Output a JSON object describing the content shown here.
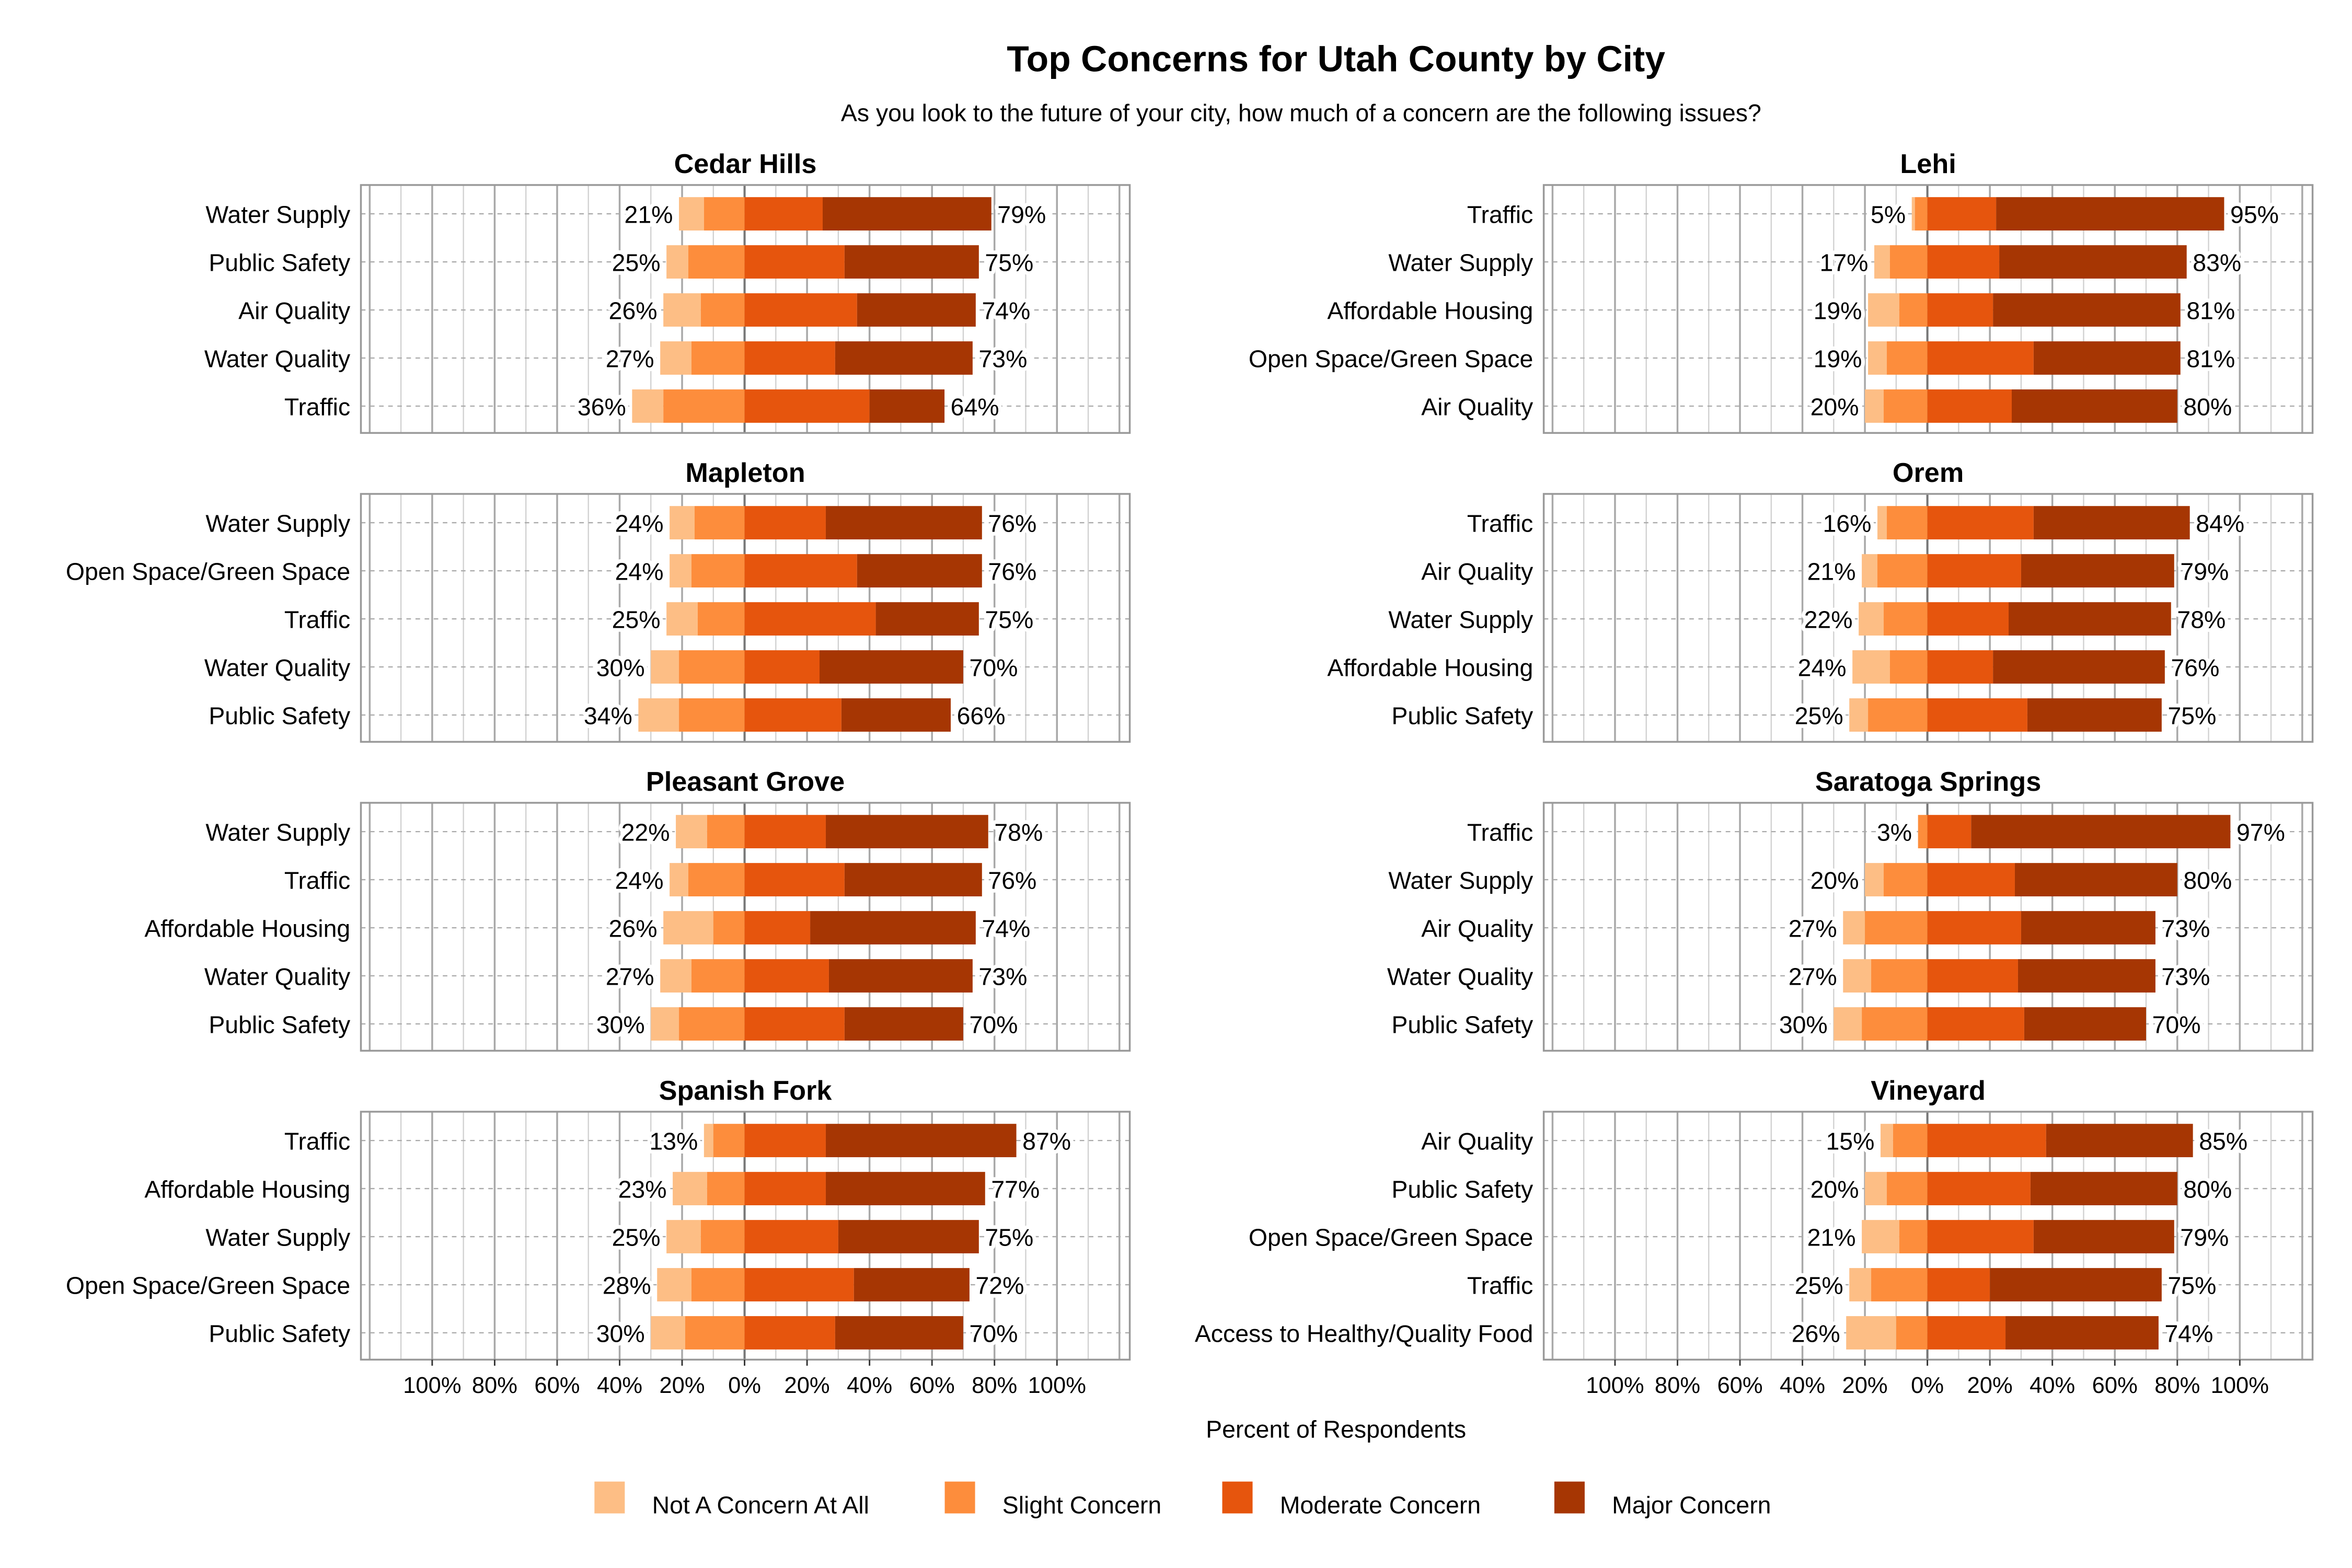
{
  "chart_data": {
    "type": "bar",
    "orientation": "horizontal diverging stacked",
    "title": "Top Concerns for Utah County by City",
    "subtitle": "As you look to the future of your city, how much of a concern are the following issues?",
    "xlabel": "Percent of Respondents",
    "xlim": [
      -100,
      100
    ],
    "x_tick_labels": [
      "100%",
      "80%",
      "60%",
      "40%",
      "20%",
      "0%",
      "20%",
      "40%",
      "60%",
      "80%",
      "100%"
    ],
    "grid": true,
    "legend_position": "bottom",
    "legend": [
      {
        "name": "Not A Concern At All",
        "color": "#FDBE85"
      },
      {
        "name": "Slight Concern",
        "color": "#FD8D3C"
      },
      {
        "name": "Moderate Concern",
        "color": "#E6550D"
      },
      {
        "name": "Major Concern",
        "color": "#A63603"
      }
    ],
    "panels": [
      {
        "title": "Cedar Hills",
        "categories": [
          "Water Supply",
          "Public Safety",
          "Air Quality",
          "Water Quality",
          "Traffic"
        ],
        "series": [
          [
            8,
            7,
            12,
            10,
            10
          ],
          [
            13,
            18,
            14,
            17,
            26
          ],
          [
            25,
            32,
            36,
            29,
            40
          ],
          [
            54,
            43,
            38,
            44,
            24
          ]
        ],
        "left_labels": [
          "21%",
          "25%",
          "26%",
          "27%",
          "36%"
        ],
        "right_labels": [
          "79%",
          "75%",
          "74%",
          "73%",
          "64%"
        ]
      },
      {
        "title": "Lehi",
        "categories": [
          "Traffic",
          "Water Supply",
          "Affordable Housing",
          "Open Space/Green Space",
          "Air Quality"
        ],
        "series": [
          [
            1,
            5,
            10,
            6,
            6
          ],
          [
            4,
            12,
            9,
            13,
            14
          ],
          [
            22,
            23,
            21,
            34,
            27
          ],
          [
            73,
            60,
            60,
            47,
            53
          ]
        ],
        "left_labels": [
          "5%",
          "17%",
          "19%",
          "19%",
          "20%"
        ],
        "right_labels": [
          "95%",
          "83%",
          "81%",
          "81%",
          "80%"
        ]
      },
      {
        "title": "Mapleton",
        "categories": [
          "Water Supply",
          "Open Space/Green Space",
          "Traffic",
          "Water Quality",
          "Public Safety"
        ],
        "series": [
          [
            8,
            7,
            10,
            9,
            13
          ],
          [
            16,
            17,
            15,
            21,
            21
          ],
          [
            26,
            36,
            42,
            24,
            31
          ],
          [
            50,
            40,
            33,
            46,
            35
          ]
        ],
        "left_labels": [
          "24%",
          "24%",
          "25%",
          "30%",
          "34%"
        ],
        "right_labels": [
          "76%",
          "76%",
          "75%",
          "70%",
          "66%"
        ]
      },
      {
        "title": "Orem",
        "categories": [
          "Traffic",
          "Air Quality",
          "Water Supply",
          "Affordable Housing",
          "Public Safety"
        ],
        "series": [
          [
            3,
            5,
            8,
            12,
            6
          ],
          [
            13,
            16,
            14,
            12,
            19
          ],
          [
            34,
            30,
            26,
            21,
            32
          ],
          [
            50,
            49,
            52,
            55,
            43
          ]
        ],
        "left_labels": [
          "16%",
          "21%",
          "22%",
          "24%",
          "25%"
        ],
        "right_labels": [
          "84%",
          "79%",
          "78%",
          "76%",
          "75%"
        ]
      },
      {
        "title": "Pleasant Grove",
        "categories": [
          "Water Supply",
          "Traffic",
          "Affordable Housing",
          "Water Quality",
          "Public Safety"
        ],
        "series": [
          [
            10,
            6,
            16,
            10,
            9
          ],
          [
            12,
            18,
            10,
            17,
            21
          ],
          [
            26,
            32,
            21,
            27,
            32
          ],
          [
            52,
            44,
            53,
            46,
            38
          ]
        ],
        "left_labels": [
          "22%",
          "24%",
          "26%",
          "27%",
          "30%"
        ],
        "right_labels": [
          "78%",
          "76%",
          "74%",
          "73%",
          "70%"
        ]
      },
      {
        "title": "Saratoga Springs",
        "categories": [
          "Traffic",
          "Water Supply",
          "Air Quality",
          "Water Quality",
          "Public Safety"
        ],
        "series": [
          [
            0,
            6,
            7,
            9,
            9
          ],
          [
            3,
            14,
            20,
            18,
            21
          ],
          [
            14,
            28,
            30,
            29,
            31
          ],
          [
            83,
            52,
            43,
            44,
            39
          ]
        ],
        "left_labels": [
          "3%",
          "20%",
          "27%",
          "27%",
          "30%"
        ],
        "right_labels": [
          "97%",
          "80%",
          "73%",
          "73%",
          "70%"
        ]
      },
      {
        "title": "Spanish Fork",
        "categories": [
          "Traffic",
          "Affordable Housing",
          "Water Supply",
          "Open Space/Green Space",
          "Public Safety"
        ],
        "series": [
          [
            3,
            11,
            11,
            11,
            11
          ],
          [
            10,
            12,
            14,
            17,
            19
          ],
          [
            26,
            26,
            30,
            35,
            29
          ],
          [
            61,
            51,
            45,
            37,
            41
          ]
        ],
        "left_labels": [
          "13%",
          "23%",
          "25%",
          "28%",
          "30%"
        ],
        "right_labels": [
          "87%",
          "77%",
          "75%",
          "72%",
          "70%"
        ]
      },
      {
        "title": "Vineyard",
        "categories": [
          "Air Quality",
          "Public Safety",
          "Open Space/Green Space",
          "Traffic",
          "Access to Healthy/Quality Food"
        ],
        "series": [
          [
            4,
            7,
            12,
            7,
            16
          ],
          [
            11,
            13,
            9,
            18,
            10
          ],
          [
            38,
            33,
            34,
            20,
            25
          ],
          [
            47,
            47,
            45,
            55,
            49
          ]
        ],
        "left_labels": [
          "15%",
          "20%",
          "21%",
          "25%",
          "26%"
        ],
        "right_labels": [
          "85%",
          "80%",
          "79%",
          "75%",
          "74%"
        ]
      }
    ]
  }
}
